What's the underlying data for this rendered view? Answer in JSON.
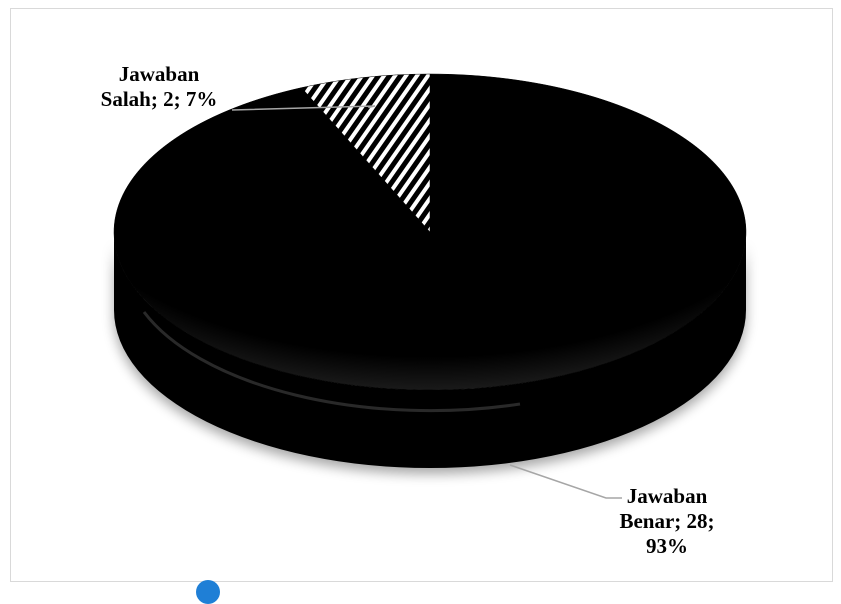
{
  "chart_data": {
    "type": "pie",
    "style": "3d",
    "categories": [
      "Jawaban Benar",
      "Jawaban Salah"
    ],
    "values": [
      28,
      2
    ],
    "percentages": [
      93,
      7
    ],
    "colors": [
      "#000000",
      "hatched-black-white"
    ],
    "legend": "none",
    "labels": {
      "salah": {
        "line1": "Jawaban",
        "line2": "Salah; 2; 7%"
      },
      "benar": {
        "line1": "Jawaban",
        "line2": "Benar; 28;",
        "line3": "93%"
      }
    }
  }
}
